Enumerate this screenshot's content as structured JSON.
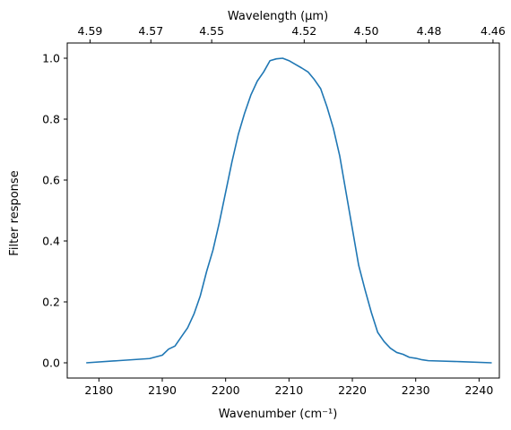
{
  "chart_data": {
    "type": "line",
    "xlabel": "Wavenumber (cm⁻¹)",
    "ylabel": "Filter response",
    "top_xlabel": "Wavelength (μm)",
    "xlim": [
      2175,
      2243.2
    ],
    "ylim": [
      -0.05,
      1.05
    ],
    "x_ticks": [
      2180,
      2190,
      2200,
      2210,
      2220,
      2230,
      2240
    ],
    "x_tick_labels": [
      "2180",
      "2190",
      "2200",
      "2210",
      "2220",
      "2230",
      "2240"
    ],
    "y_ticks": [
      0.0,
      0.2,
      0.4,
      0.6,
      0.8,
      1.0
    ],
    "y_tick_labels": [
      "0.0",
      "0.2",
      "0.4",
      "0.6",
      "0.8",
      "1.0"
    ],
    "top_ticks": [
      {
        "label": "4.59",
        "wavenumber": 2178.6
      },
      {
        "label": "4.57",
        "wavenumber": 2188.2
      },
      {
        "label": "4.55",
        "wavenumber": 2197.8
      },
      {
        "label": "4.52",
        "wavenumber": 2212.4
      },
      {
        "label": "4.50",
        "wavenumber": 2222.2
      },
      {
        "label": "4.48",
        "wavenumber": 2232.1
      },
      {
        "label": "4.46",
        "wavenumber": 2242.2
      }
    ],
    "grid": false,
    "line_color": "#1f77b4",
    "series": [
      {
        "name": "",
        "x": [
          2178,
          2183,
          2188,
          2190,
          2191,
          2192,
          2193,
          2194,
          2195,
          2196,
          2197,
          2198,
          2199,
          2200,
          2201,
          2202,
          2203,
          2204,
          2205,
          2206,
          2207,
          2208,
          2209,
          2210,
          2211,
          2212,
          2213,
          2214,
          2215,
          2216,
          2217,
          2218,
          2219,
          2220,
          2221,
          2222,
          2223,
          2224,
          2225,
          2226,
          2227,
          2228,
          2229,
          2230,
          2231,
          2232,
          2237,
          2242
        ],
        "y": [
          0.0,
          0.007,
          0.014,
          0.025,
          0.045,
          0.055,
          0.085,
          0.115,
          0.16,
          0.22,
          0.3,
          0.37,
          0.46,
          0.56,
          0.66,
          0.75,
          0.82,
          0.88,
          0.925,
          0.955,
          0.992,
          0.998,
          1.0,
          0.992,
          0.98,
          0.968,
          0.955,
          0.93,
          0.9,
          0.84,
          0.77,
          0.68,
          0.56,
          0.44,
          0.32,
          0.24,
          0.165,
          0.1,
          0.07,
          0.048,
          0.034,
          0.028,
          0.018,
          0.015,
          0.01,
          0.007,
          0.004,
          0.0
        ]
      }
    ]
  }
}
